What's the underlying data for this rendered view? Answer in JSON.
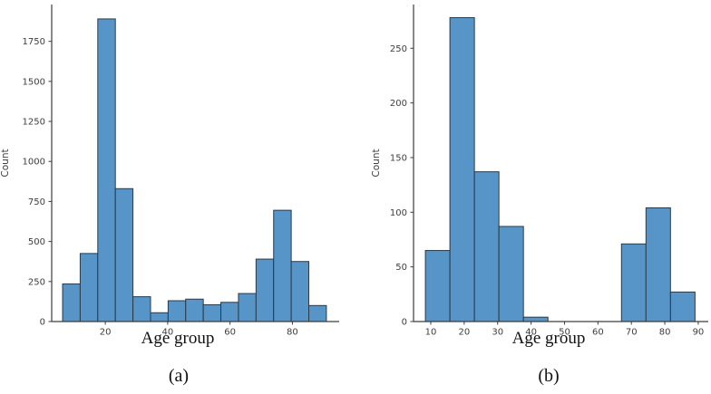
{
  "figure": {
    "background": "#ffffff",
    "description": "Two side-by-side histograms of age group counts"
  },
  "chart_data": [
    {
      "type": "bar",
      "subtype": "histogram",
      "caption": "(a)",
      "title": "",
      "xlabel": "Age group",
      "ylabel": "Count",
      "bins": {
        "start": 6.3,
        "width": 5.64
      },
      "values": [
        235,
        425,
        1890,
        830,
        155,
        55,
        130,
        140,
        105,
        120,
        175,
        390,
        695,
        375,
        100
      ],
      "xticks": [
        20,
        40,
        60,
        80
      ],
      "yticks": [
        0,
        250,
        500,
        750,
        1000,
        1250,
        1500,
        1750
      ],
      "xlim": [
        2.8,
        95.0
      ],
      "ylim": [
        0,
        1980
      ],
      "grid": false,
      "legend": null,
      "bar_color": "#5795c8",
      "bar_edge_color": "#2a3a47",
      "axis_color": "#3d3d3d"
    },
    {
      "type": "bar",
      "subtype": "histogram",
      "caption": "(b)",
      "title": "",
      "xlabel": "Age group",
      "ylabel": "Count",
      "bins": {
        "start": 8.4,
        "width": 7.33
      },
      "values": [
        65,
        278,
        137,
        87,
        4,
        0,
        0,
        0,
        71,
        104,
        27
      ],
      "xticks": [
        10,
        20,
        30,
        40,
        50,
        60,
        70,
        80,
        90
      ],
      "yticks": [
        0,
        50,
        100,
        150,
        200,
        250
      ],
      "xlim": [
        4.85,
        93.0
      ],
      "ylim": [
        0,
        290
      ],
      "grid": false,
      "legend": null,
      "bar_color": "#5795c8",
      "bar_edge_color": "#2a3a47",
      "axis_color": "#3d3d3d"
    }
  ]
}
